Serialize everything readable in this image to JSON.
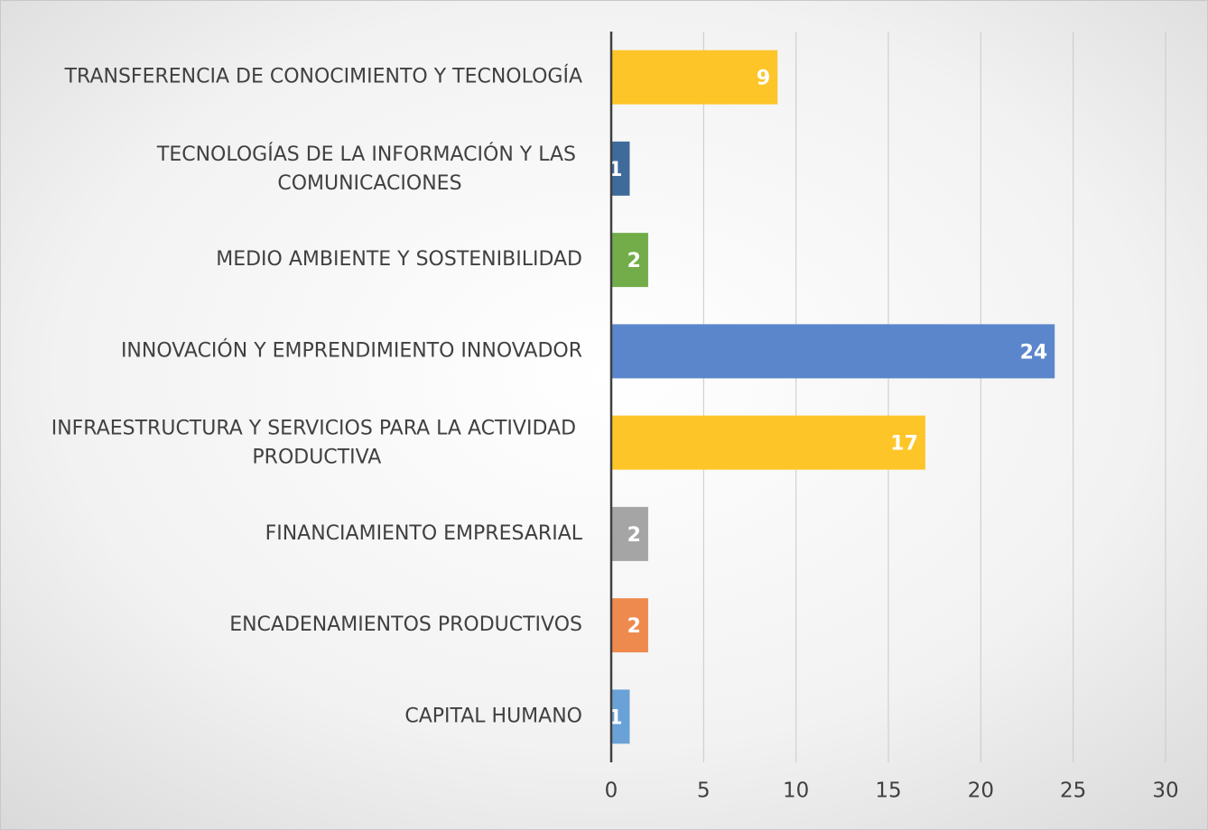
{
  "chart_data": {
    "type": "bar",
    "orientation": "horizontal",
    "categories": [
      "TRANSFERENCIA DE CONOCIMIENTO Y TECNOLOGÍA",
      "TECNOLOGÍAS DE LA INFORMACIÓN Y LAS COMUNICACIONES",
      "MEDIO AMBIENTE Y SOSTENIBILIDAD",
      "INNOVACIÓN Y EMPRENDIMIENTO INNOVADOR",
      "INFRAESTRUCTURA Y SERVICIOS PARA LA ACTIVIDAD PRODUCTIVA",
      "FINANCIAMIENTO EMPRESARIAL",
      "ENCADENAMIENTOS PRODUCTIVOS",
      "CAPITAL HUMANO"
    ],
    "values": [
      9,
      1,
      2,
      24,
      17,
      2,
      2,
      1
    ],
    "colors": [
      "#fdc528",
      "#3f6b9b",
      "#72ad4a",
      "#5b86cb",
      "#fdc528",
      "#a5a5a5",
      "#ee8a4e",
      "#6aa2d8"
    ],
    "xlim": [
      0,
      30
    ],
    "xticks": [
      0,
      5,
      10,
      15,
      20,
      25,
      30
    ],
    "grid": true
  }
}
